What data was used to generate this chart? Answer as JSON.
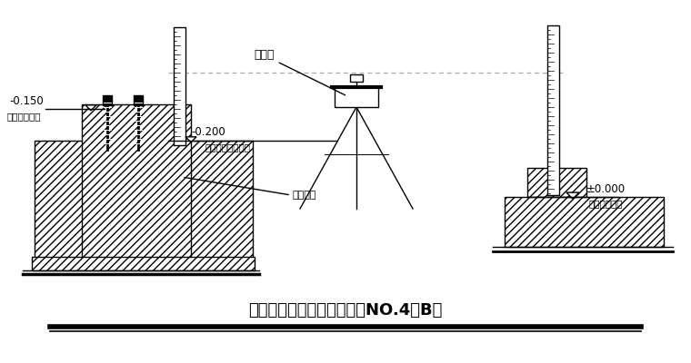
{
  "bg_color": "#ffffff",
  "line_color": "#000000",
  "title": "钢柱柱底标高引测示意图（NO.4－B）",
  "title_fontsize": 13,
  "label_m0150": "-0.150",
  "label_zhudingbiaogao": "（柱顶标高）",
  "label_m0200": "-0.200",
  "label_yicicizhu": "（一次浇筑标高）",
  "label_shuijunyi": "水准仪",
  "label_gangjinzhu": "钢筋砼柱",
  "label_pm0000": "±0.000",
  "label_jizhibiaogao": "（基准标高）",
  "hatch": "////",
  "dotted_color": "#aaaaaa",
  "lw": 1.0
}
